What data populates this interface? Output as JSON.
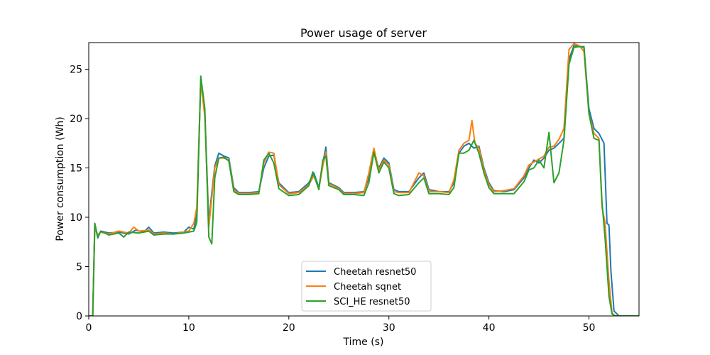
{
  "chart_data": {
    "type": "line",
    "title": "Power usage of server",
    "xlabel": "Time (s)",
    "ylabel": "Power consumption (Wh)",
    "xlim": [
      0,
      55
    ],
    "ylim": [
      0,
      27.7
    ],
    "xticks": [
      0,
      10,
      20,
      30,
      40,
      50
    ],
    "yticks": [
      0,
      5,
      10,
      15,
      20,
      25
    ],
    "grid": false,
    "legend_position": "lower-center",
    "series": [
      {
        "name": "Cheetah resnet50",
        "color": "#1f77b4",
        "points": [
          [
            0,
            0
          ],
          [
            0.4,
            0
          ],
          [
            0.6,
            9.3
          ],
          [
            0.9,
            7.9
          ],
          [
            1.2,
            8.6
          ],
          [
            2,
            8.4
          ],
          [
            3,
            8.5
          ],
          [
            4,
            8.3
          ],
          [
            4.7,
            8.7
          ],
          [
            5.5,
            8.5
          ],
          [
            6,
            9.0
          ],
          [
            6.5,
            8.4
          ],
          [
            7.5,
            8.5
          ],
          [
            8.5,
            8.4
          ],
          [
            9.5,
            8.5
          ],
          [
            10,
            9.0
          ],
          [
            10.5,
            8.8
          ],
          [
            10.8,
            10.3
          ],
          [
            11.2,
            24.0
          ],
          [
            11.6,
            20.5
          ],
          [
            12,
            9.5
          ],
          [
            12.3,
            12.5
          ],
          [
            12.6,
            15.2
          ],
          [
            13,
            16.5
          ],
          [
            13.5,
            16.2
          ],
          [
            14,
            16.0
          ],
          [
            14.5,
            13.0
          ],
          [
            15,
            12.5
          ],
          [
            16,
            12.5
          ],
          [
            17,
            12.6
          ],
          [
            17.5,
            15.0
          ],
          [
            18,
            16.2
          ],
          [
            18.5,
            16.3
          ],
          [
            19,
            13.5
          ],
          [
            20,
            12.5
          ],
          [
            21,
            12.6
          ],
          [
            22,
            13.5
          ],
          [
            22.5,
            14.5
          ],
          [
            23,
            13.0
          ],
          [
            23.4,
            15.5
          ],
          [
            23.7,
            17.1
          ],
          [
            24,
            13.5
          ],
          [
            25,
            13.0
          ],
          [
            25.5,
            12.5
          ],
          [
            26.5,
            12.5
          ],
          [
            27.5,
            12.6
          ],
          [
            28,
            14.0
          ],
          [
            28.5,
            16.5
          ],
          [
            29,
            15.0
          ],
          [
            29.5,
            16.0
          ],
          [
            30,
            15.5
          ],
          [
            30.5,
            12.8
          ],
          [
            31,
            12.6
          ],
          [
            32,
            12.6
          ],
          [
            33,
            14.0
          ],
          [
            33.5,
            14.5
          ],
          [
            34,
            12.8
          ],
          [
            35,
            12.6
          ],
          [
            36,
            12.6
          ],
          [
            36.5,
            13.5
          ],
          [
            37,
            16.5
          ],
          [
            37.5,
            17.2
          ],
          [
            38,
            17.5
          ],
          [
            38.5,
            17.0
          ],
          [
            39,
            17.2
          ],
          [
            39.5,
            15.0
          ],
          [
            40,
            13.5
          ],
          [
            40.5,
            12.7
          ],
          [
            41.5,
            12.6
          ],
          [
            42.5,
            12.8
          ],
          [
            43.5,
            14.0
          ],
          [
            44,
            15.0
          ],
          [
            44.5,
            15.8
          ],
          [
            45,
            15.5
          ],
          [
            45.5,
            16.0
          ],
          [
            46,
            16.8
          ],
          [
            46.5,
            17.0
          ],
          [
            47,
            17.5
          ],
          [
            47.5,
            18.0
          ],
          [
            48,
            26.0
          ],
          [
            48.5,
            27.4
          ],
          [
            49,
            27.3
          ],
          [
            49.5,
            27.2
          ],
          [
            50,
            21.0
          ],
          [
            50.5,
            19.0
          ],
          [
            51,
            18.5
          ],
          [
            51.5,
            17.5
          ],
          [
            51.8,
            9.4
          ],
          [
            52,
            9.2
          ],
          [
            52.2,
            4.5
          ],
          [
            52.5,
            0.5
          ],
          [
            53,
            0
          ],
          [
            55,
            0
          ]
        ]
      },
      {
        "name": "Cheetah sqnet",
        "color": "#ff7f0e",
        "points": [
          [
            0,
            0
          ],
          [
            0.4,
            0
          ],
          [
            0.6,
            8.9
          ],
          [
            0.9,
            8.2
          ],
          [
            1.2,
            8.5
          ],
          [
            2,
            8.3
          ],
          [
            3,
            8.6
          ],
          [
            4,
            8.4
          ],
          [
            4.5,
            9.0
          ],
          [
            5,
            8.6
          ],
          [
            6,
            8.7
          ],
          [
            6.5,
            8.3
          ],
          [
            7.5,
            8.4
          ],
          [
            8.5,
            8.3
          ],
          [
            9.5,
            8.5
          ],
          [
            10,
            8.6
          ],
          [
            10.5,
            9.4
          ],
          [
            10.8,
            11.0
          ],
          [
            11.2,
            23.8
          ],
          [
            11.6,
            20.2
          ],
          [
            12,
            9.0
          ],
          [
            12.3,
            12.0
          ],
          [
            12.6,
            15.0
          ],
          [
            13,
            16.0
          ],
          [
            13.5,
            16.0
          ],
          [
            14,
            15.8
          ],
          [
            14.5,
            12.8
          ],
          [
            15,
            12.4
          ],
          [
            16,
            12.4
          ],
          [
            17,
            12.5
          ],
          [
            17.5,
            15.5
          ],
          [
            18,
            16.6
          ],
          [
            18.5,
            16.5
          ],
          [
            19,
            13.3
          ],
          [
            20,
            12.4
          ],
          [
            21,
            12.5
          ],
          [
            22,
            13.3
          ],
          [
            22.5,
            14.2
          ],
          [
            23,
            12.9
          ],
          [
            23.4,
            15.2
          ],
          [
            23.7,
            16.6
          ],
          [
            24,
            13.4
          ],
          [
            25,
            12.9
          ],
          [
            25.5,
            12.4
          ],
          [
            26.5,
            12.4
          ],
          [
            27.5,
            12.5
          ],
          [
            28,
            14.5
          ],
          [
            28.5,
            17.0
          ],
          [
            29,
            14.8
          ],
          [
            29.5,
            15.8
          ],
          [
            30,
            15.3
          ],
          [
            30.5,
            12.6
          ],
          [
            31,
            12.5
          ],
          [
            32,
            12.5
          ],
          [
            33,
            14.5
          ],
          [
            33.5,
            14.2
          ],
          [
            34,
            12.6
          ],
          [
            35,
            12.6
          ],
          [
            36,
            12.5
          ],
          [
            36.5,
            13.8
          ],
          [
            37,
            16.8
          ],
          [
            37.5,
            17.5
          ],
          [
            38,
            17.8
          ],
          [
            38.3,
            19.8
          ],
          [
            38.6,
            17.5
          ],
          [
            39,
            17.0
          ],
          [
            39.5,
            14.8
          ],
          [
            40,
            13.3
          ],
          [
            40.5,
            12.6
          ],
          [
            41.5,
            12.7
          ],
          [
            42.5,
            12.9
          ],
          [
            43.5,
            14.2
          ],
          [
            44,
            15.3
          ],
          [
            44.5,
            15.6
          ],
          [
            45,
            15.9
          ],
          [
            45.5,
            16.2
          ],
          [
            46,
            17.1
          ],
          [
            46.5,
            17.2
          ],
          [
            47,
            17.9
          ],
          [
            47.5,
            19.0
          ],
          [
            48,
            27.0
          ],
          [
            48.5,
            27.6
          ],
          [
            49,
            27.4
          ],
          [
            49.5,
            26.8
          ],
          [
            50,
            20.5
          ],
          [
            50.5,
            18.5
          ],
          [
            51,
            18.0
          ],
          [
            51.3,
            11.0
          ],
          [
            51.6,
            9.5
          ],
          [
            52,
            3.5
          ],
          [
            52.3,
            0.3
          ],
          [
            52.6,
            0
          ],
          [
            55,
            0
          ]
        ]
      },
      {
        "name": "SCI_HE resnet50",
        "color": "#2ca02c",
        "points": [
          [
            0,
            0
          ],
          [
            0.4,
            0
          ],
          [
            0.6,
            9.4
          ],
          [
            0.9,
            8.0
          ],
          [
            1.2,
            8.6
          ],
          [
            2,
            8.2
          ],
          [
            3,
            8.4
          ],
          [
            3.5,
            8.0
          ],
          [
            4,
            8.5
          ],
          [
            5,
            8.4
          ],
          [
            5.5,
            8.5
          ],
          [
            6,
            8.6
          ],
          [
            6.5,
            8.2
          ],
          [
            7.5,
            8.3
          ],
          [
            8.5,
            8.3
          ],
          [
            9.5,
            8.4
          ],
          [
            10,
            8.5
          ],
          [
            10.5,
            8.6
          ],
          [
            10.8,
            9.5
          ],
          [
            11.2,
            24.3
          ],
          [
            11.6,
            21.0
          ],
          [
            12,
            8.0
          ],
          [
            12.3,
            7.3
          ],
          [
            12.6,
            14.0
          ],
          [
            13,
            16.0
          ],
          [
            13.5,
            16.1
          ],
          [
            14,
            15.7
          ],
          [
            14.5,
            12.6
          ],
          [
            15,
            12.3
          ],
          [
            16,
            12.3
          ],
          [
            17,
            12.4
          ],
          [
            17.5,
            15.8
          ],
          [
            18,
            16.5
          ],
          [
            18.5,
            15.5
          ],
          [
            19,
            12.9
          ],
          [
            20,
            12.2
          ],
          [
            21,
            12.3
          ],
          [
            22,
            13.2
          ],
          [
            22.4,
            14.6
          ],
          [
            23,
            12.8
          ],
          [
            23.4,
            15.8
          ],
          [
            23.7,
            16.2
          ],
          [
            24,
            13.2
          ],
          [
            25,
            12.8
          ],
          [
            25.5,
            12.3
          ],
          [
            26.5,
            12.3
          ],
          [
            27.5,
            12.2
          ],
          [
            28,
            13.5
          ],
          [
            28.5,
            16.6
          ],
          [
            29,
            14.5
          ],
          [
            29.5,
            15.6
          ],
          [
            30,
            15.0
          ],
          [
            30.5,
            12.4
          ],
          [
            31,
            12.2
          ],
          [
            32,
            12.3
          ],
          [
            33,
            13.5
          ],
          [
            33.5,
            14.0
          ],
          [
            34,
            12.4
          ],
          [
            35,
            12.4
          ],
          [
            36,
            12.3
          ],
          [
            36.5,
            13.0
          ],
          [
            37,
            16.5
          ],
          [
            37.5,
            16.5
          ],
          [
            38,
            16.8
          ],
          [
            38.5,
            17.8
          ],
          [
            39,
            16.5
          ],
          [
            39.5,
            14.5
          ],
          [
            40,
            13.0
          ],
          [
            40.5,
            12.4
          ],
          [
            41.5,
            12.4
          ],
          [
            42.5,
            12.4
          ],
          [
            43.5,
            13.6
          ],
          [
            44,
            14.8
          ],
          [
            44.5,
            15.0
          ],
          [
            45,
            15.8
          ],
          [
            45.5,
            15.0
          ],
          [
            46,
            18.6
          ],
          [
            46.5,
            13.5
          ],
          [
            47,
            14.5
          ],
          [
            47.5,
            17.8
          ],
          [
            48,
            25.5
          ],
          [
            48.5,
            27.2
          ],
          [
            49,
            27.3
          ],
          [
            49.5,
            27.3
          ],
          [
            50,
            20.5
          ],
          [
            50.5,
            18.0
          ],
          [
            51,
            17.8
          ],
          [
            51.3,
            11.5
          ],
          [
            51.6,
            8.0
          ],
          [
            52,
            2.0
          ],
          [
            52.3,
            0.2
          ],
          [
            52.6,
            0
          ],
          [
            55,
            0
          ]
        ]
      }
    ]
  }
}
